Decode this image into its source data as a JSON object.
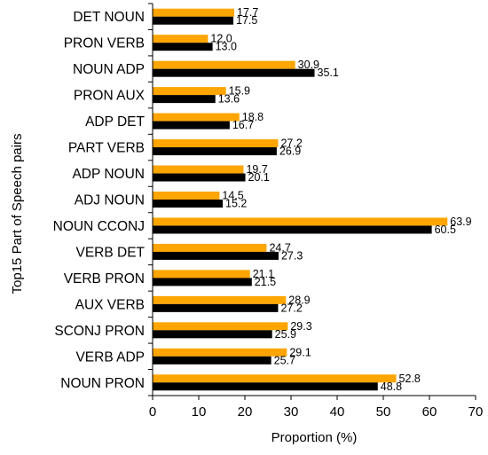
{
  "chart_data": {
    "type": "bar",
    "orientation": "horizontal",
    "title": "",
    "xlabel": "Proportion (%)",
    "ylabel": "Top15 Part of Speech pairs",
    "xlim": [
      0,
      70
    ],
    "xticks": [
      0,
      10,
      20,
      30,
      40,
      50,
      60,
      70
    ],
    "grid": false,
    "legend": "none",
    "categories": [
      "DET NOUN",
      "PRON VERB",
      "NOUN ADP",
      "PRON AUX",
      "ADP DET",
      "PART VERB",
      "ADP NOUN",
      "ADJ NOUN",
      "NOUN CCONJ",
      "VERB DET",
      "VERB PRON",
      "AUX VERB",
      "SCONJ PRON",
      "VERB ADP",
      "NOUN PRON"
    ],
    "series": [
      {
        "color": "#FFA500",
        "values": [
          17.7,
          12.0,
          30.9,
          15.9,
          18.8,
          27.2,
          19.7,
          14.5,
          63.9,
          24.7,
          21.1,
          28.9,
          29.3,
          29.1,
          52.8
        ],
        "labels": [
          "17.7",
          "12.0",
          "30.9",
          "15.9",
          "18.8",
          "27.2",
          "19.7",
          "14.5",
          "63.9",
          "24.7",
          "21.1",
          "28.9",
          "29.3",
          "29.1",
          "52.8"
        ]
      },
      {
        "color": "#000000",
        "values": [
          17.5,
          13.0,
          35.1,
          13.6,
          16.7,
          26.9,
          20.1,
          15.2,
          60.5,
          27.3,
          21.5,
          27.2,
          25.9,
          25.7,
          48.8
        ],
        "labels": [
          "17.5",
          "13.0",
          "35.1",
          "13.6",
          "16.7",
          "26.9",
          "20.1",
          "15.2",
          "60.5",
          "27.3",
          "21.5",
          "27.2",
          "25.9",
          "25.7",
          "48.8"
        ]
      }
    ]
  }
}
